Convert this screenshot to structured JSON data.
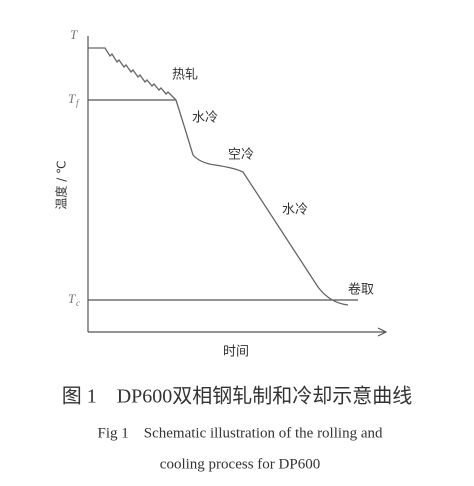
{
  "diagram": {
    "y_axis_label": "温度 / ℃",
    "x_axis_label": "时间",
    "levels": [
      {
        "symbol": "T",
        "subscript": null
      },
      {
        "symbol": "T",
        "subscript": "f"
      },
      {
        "symbol": "T",
        "subscript": "c"
      }
    ],
    "annotations": [
      "热轧",
      "水冷",
      "空冷",
      "水冷",
      "卷取"
    ]
  },
  "caption": {
    "chinese": "图 1　DP600双相钢轧制和冷却示意曲线",
    "english_line1": "Fig 1　Schematic illustration of the rolling and",
    "english_line2": "cooling process for DP600"
  }
}
